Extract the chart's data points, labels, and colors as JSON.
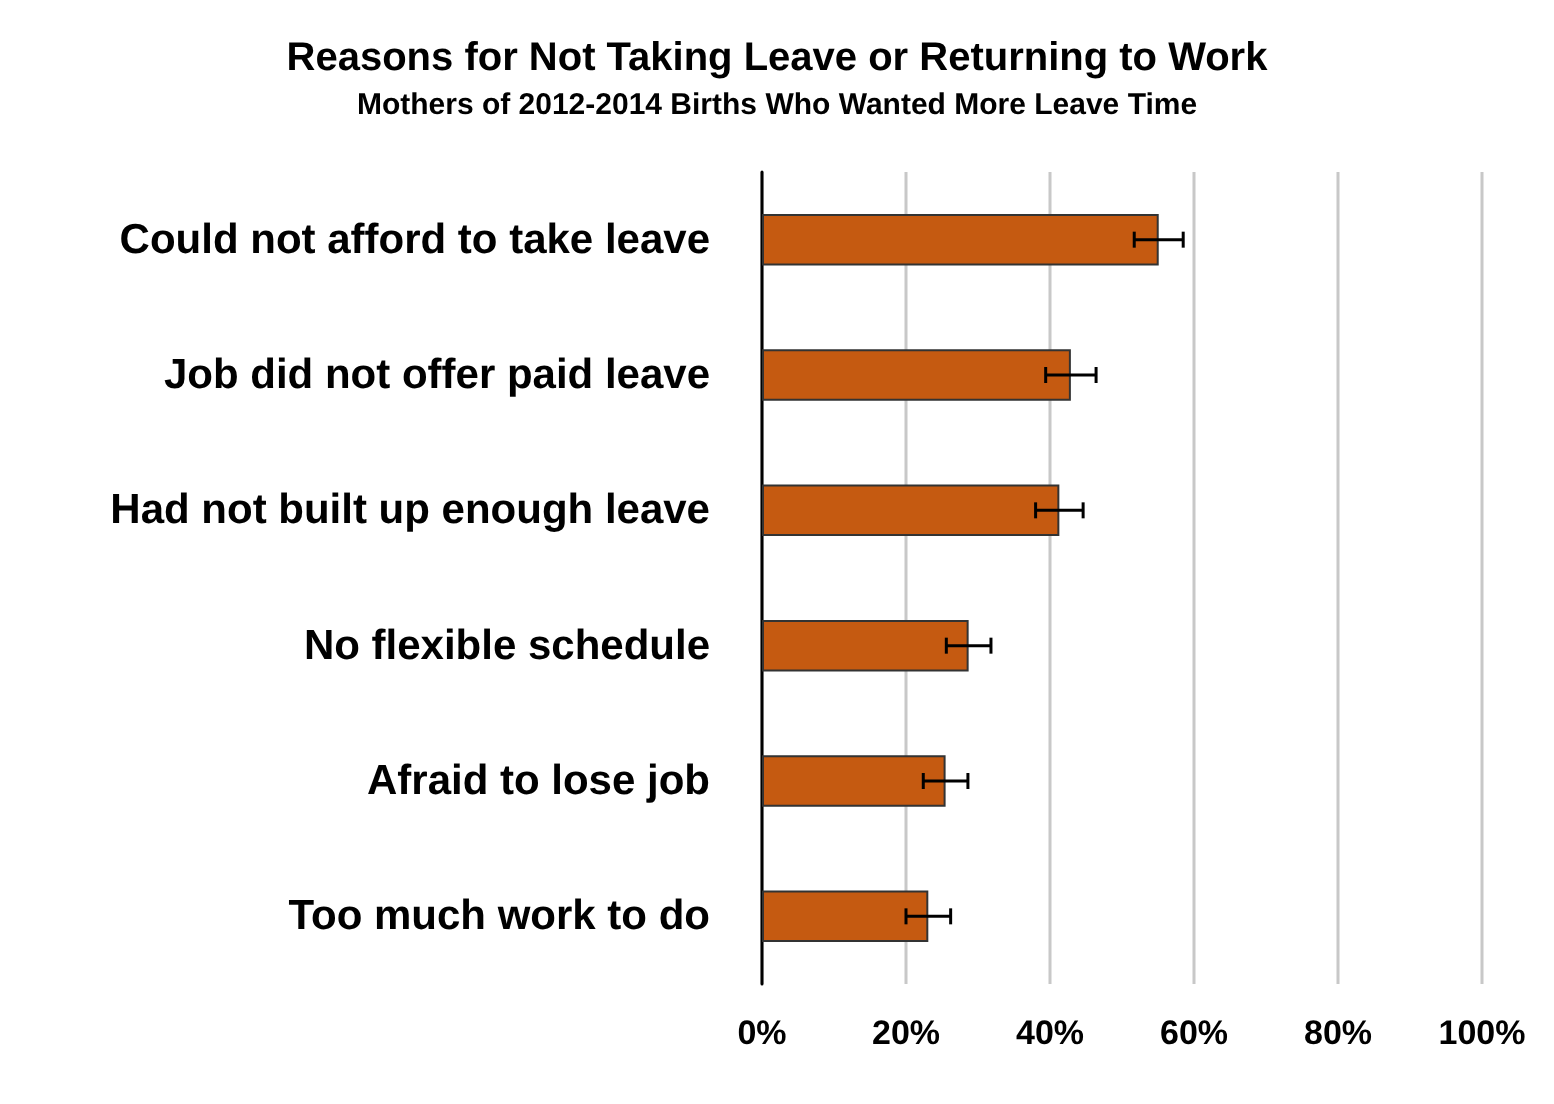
{
  "chart_data": {
    "type": "bar",
    "orientation": "horizontal",
    "title": "Reasons for Not Taking Leave or Returning to Work",
    "subtitle": "Mothers of 2012-2014 Births Who Wanted More Leave Time",
    "categories": [
      "Could not afford to take leave",
      "Job did not offer paid leave",
      "Had not built up enough leave",
      "No flexible schedule",
      "Afraid to lose job",
      "Too much work to do"
    ],
    "values": [
      55.1,
      42.9,
      41.3,
      28.7,
      25.5,
      23.1
    ],
    "errors": [
      3.4,
      3.5,
      3.3,
      3.1,
      3.1,
      3.1
    ],
    "color": "#c55a11",
    "xlim": [
      0,
      100
    ],
    "xticks": [
      {
        "value": 0,
        "label": "0%"
      },
      {
        "value": 20,
        "label": "20%"
      },
      {
        "value": 40,
        "label": "40%"
      },
      {
        "value": 60,
        "label": "60%"
      },
      {
        "value": 80,
        "label": "80%"
      },
      {
        "value": 100,
        "label": "100%"
      }
    ],
    "grid": "x"
  }
}
